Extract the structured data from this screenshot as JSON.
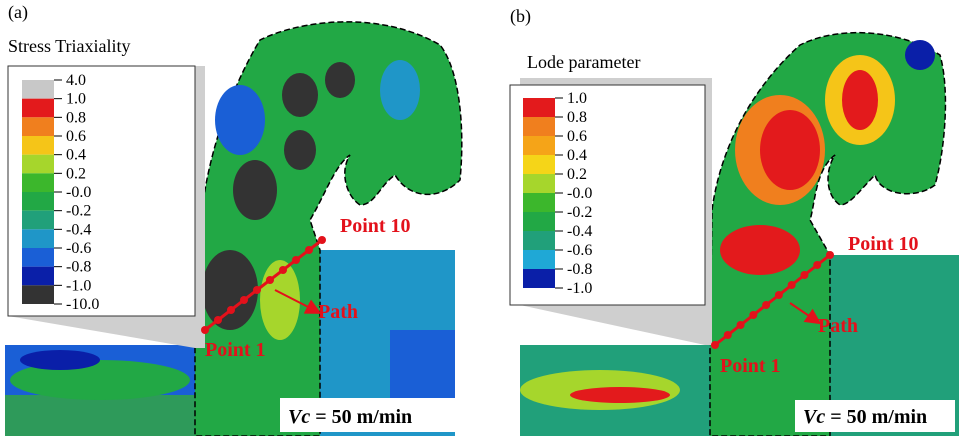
{
  "panels": [
    {
      "label": "(a)",
      "legend": {
        "title": "Stress Triaxiality",
        "labels": [
          "4.0",
          "1.0",
          "0.8",
          "0.6",
          "0.4",
          "0.2",
          "-0.0",
          "-0.2",
          "-0.4",
          "-0.6",
          "-0.8",
          "-1.0",
          "-10.0"
        ]
      },
      "annotations": {
        "end": "Point 10",
        "path": "Path",
        "start": "Point 1"
      },
      "speed": {
        "var": "Vc",
        "rest": " = 50 m/min"
      }
    },
    {
      "label": "(b)",
      "legend": {
        "title": "Lode parameter",
        "labels": [
          "1.0",
          "0.8",
          "0.6",
          "0.4",
          "0.2",
          "-0.0",
          "-0.2",
          "-0.4",
          "-0.6",
          "-0.8",
          "-1.0"
        ]
      },
      "annotations": {
        "end": "Point 10",
        "path": "Path",
        "start": "Point 1"
      },
      "speed": {
        "var": "Vc",
        "rest": " = 50 m/min"
      }
    }
  ]
}
